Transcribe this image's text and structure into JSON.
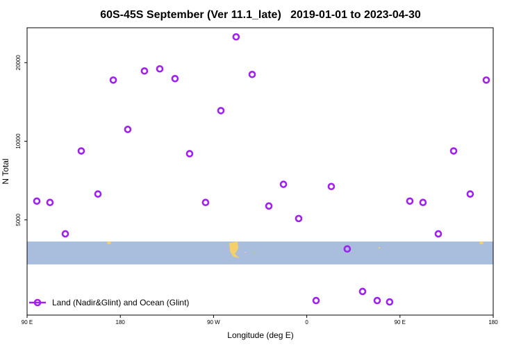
{
  "chart_data": {
    "type": "scatter",
    "title": "60S-45S September (Ver 11.1_late)   2019-01-01 to 2023-04-30",
    "xlabel": "Longitude (deg E)",
    "ylabel": "N Total",
    "xlim": [
      90,
      540
    ],
    "ylim": [
      2160,
      27200
    ],
    "log_scale": true,
    "legend": "lower left",
    "xticks": [
      {
        "value": 90,
        "label": "90 E"
      },
      180,
      {
        "value": 270,
        "label": "90 W"
      },
      {
        "value": 360,
        "label": "0"
      },
      {
        "value": 450,
        "label": "90 E"
      },
      {
        "value": 540,
        "label": "180"
      }
    ],
    "yticks": [
      5000,
      10000,
      20000
    ],
    "series": [
      {
        "name": "Land (Nadir&Glint) and Ocean (Glint)",
        "color": "#a020f0",
        "x": [
          99.4,
          112.1,
          126.9,
          142.3,
          158.4,
          173.2,
          187.2,
          203.3,
          218.1,
          232.8,
          246.9,
          262.3,
          277.1,
          291.8,
          307.3,
          323.4,
          337.5,
          352.2,
          369.0,
          383.7,
          399.1,
          413.9,
          428.0,
          440.0,
          459.5,
          472.2,
          487.0,
          501.8,
          517.8,
          533.3
        ],
        "values": [
          5900,
          5830,
          4420,
          9180,
          6280,
          17150,
          11100,
          18580,
          18930,
          17370,
          8960,
          5830,
          13100,
          25100,
          18020,
          5650,
          6840,
          5060,
          2455,
          6710,
          3870,
          2660,
          2455,
          2425,
          5900,
          5830,
          4420,
          9180,
          6280,
          17150
        ]
      }
    ]
  }
}
